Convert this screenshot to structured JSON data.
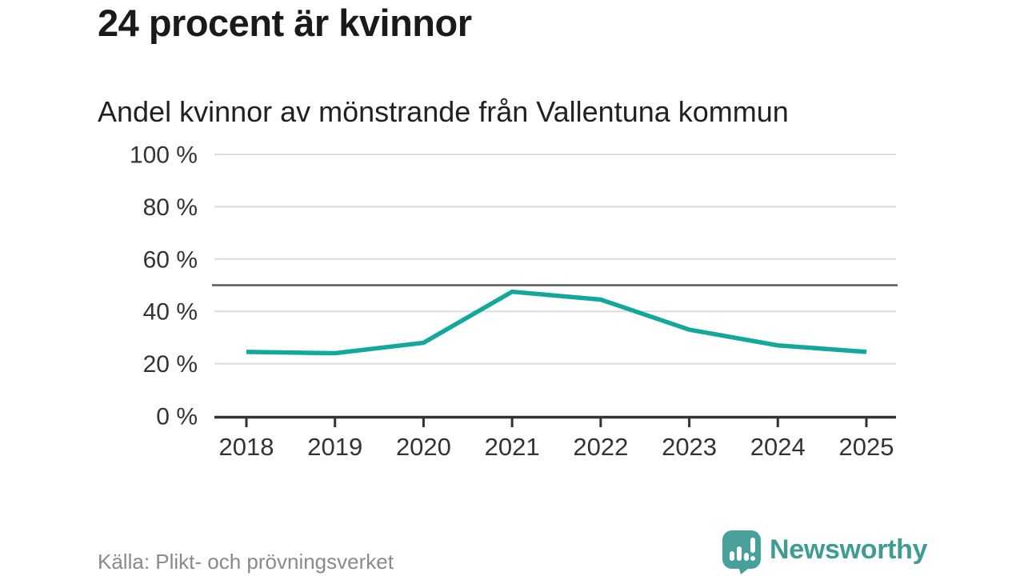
{
  "header": {
    "title": "24 procent är kvinnor",
    "subtitle": "Andel kvinnor av mönstrande från Vallentuna kommun"
  },
  "chart_data": {
    "type": "line",
    "title": "24 procent är kvinnor",
    "subtitle": "Andel kvinnor av mönstrande från Vallentuna kommun",
    "x": [
      2018,
      2019,
      2020,
      2021,
      2022,
      2023,
      2024,
      2025
    ],
    "series": [
      {
        "name": "Andel kvinnor av mönstrande",
        "values": [
          24.5,
          24,
          28,
          47.5,
          44.5,
          33,
          27,
          24.5
        ]
      }
    ],
    "unit": "%",
    "ylim": [
      0,
      100
    ],
    "yticks": [
      0,
      20,
      40,
      60,
      80,
      100
    ],
    "ytick_suffix": " %",
    "reference_line": 50,
    "grid": true,
    "legend": "none",
    "colors": {
      "line": "#14a79b",
      "grid": "#dcdcdc",
      "reference": "#58585a",
      "axis": "#333333",
      "tick_label": "#333333"
    }
  },
  "footer": {
    "source": "Källa: Plikt- och prövningsverket",
    "logo_text": "Newsworthy",
    "logo_color": "#3f9c95",
    "logo_icon_color": "#47a099"
  }
}
